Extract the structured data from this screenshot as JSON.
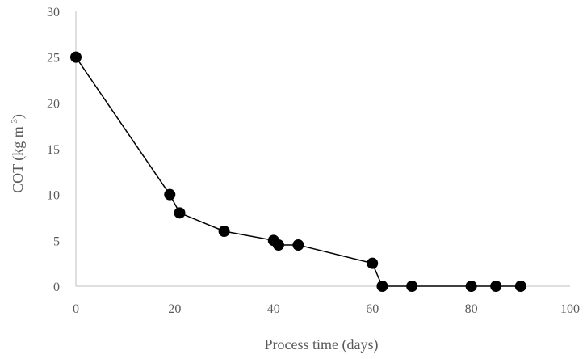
{
  "chart_data": {
    "type": "line",
    "xlabel": "Process time (days)",
    "ylabel": {
      "prefix": "COT (kg  m",
      "superscript": "-3",
      "suffix": ")"
    },
    "xlim": [
      0,
      100
    ],
    "ylim": [
      0,
      30
    ],
    "x_ticks": [
      0,
      20,
      40,
      60,
      80,
      100
    ],
    "y_ticks": [
      0,
      5,
      10,
      15,
      20,
      25,
      30
    ],
    "grid": false,
    "legend": "none",
    "series": [
      {
        "x": [
          0,
          19,
          21,
          30,
          40,
          41,
          45,
          60,
          62,
          68,
          80,
          85,
          90
        ],
        "y": [
          25,
          10,
          8,
          6,
          5,
          4.5,
          4.5,
          2.5,
          0,
          0,
          0,
          0,
          0
        ]
      }
    ],
    "colors": {
      "series": "#000000",
      "axis": "#bfbfbf",
      "text": "#595959"
    }
  }
}
